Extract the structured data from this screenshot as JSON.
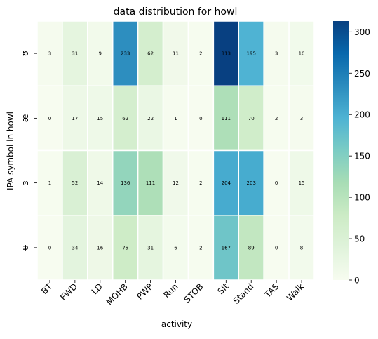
{
  "chart_data": {
    "type": "heatmap",
    "title": "data distribution for howl",
    "xlabel": "activity",
    "ylabel": "IPA symbol in howl",
    "columns": [
      "BT",
      "FWD",
      "LD",
      "MOHB",
      "PWP",
      "Run",
      "STOB",
      "Sit",
      "Stand",
      "TAS",
      "Walk"
    ],
    "rows": [
      "ʊ",
      "æ",
      "ɜ",
      "ʉ"
    ],
    "values": [
      [
        3,
        31,
        9,
        233,
        62,
        11,
        2,
        313,
        195,
        3,
        10
      ],
      [
        0,
        17,
        15,
        62,
        22,
        1,
        0,
        111,
        70,
        2,
        3
      ],
      [
        1,
        52,
        14,
        136,
        111,
        12,
        2,
        204,
        203,
        0,
        15
      ],
      [
        0,
        34,
        16,
        75,
        31,
        6,
        2,
        167,
        89,
        0,
        8
      ]
    ],
    "colorbar": {
      "min": 0,
      "max": 313,
      "ticks": [
        0,
        50,
        100,
        150,
        200,
        250,
        300
      ],
      "colormap": [
        "#f7fcf0",
        "#e0f3db",
        "#ccebc5",
        "#a8ddb5",
        "#7bccc4",
        "#4eb3d3",
        "#2b8cbe",
        "#0868ac",
        "#084081"
      ]
    },
    "cell_border_color": "#ffffff",
    "annotations": true
  }
}
